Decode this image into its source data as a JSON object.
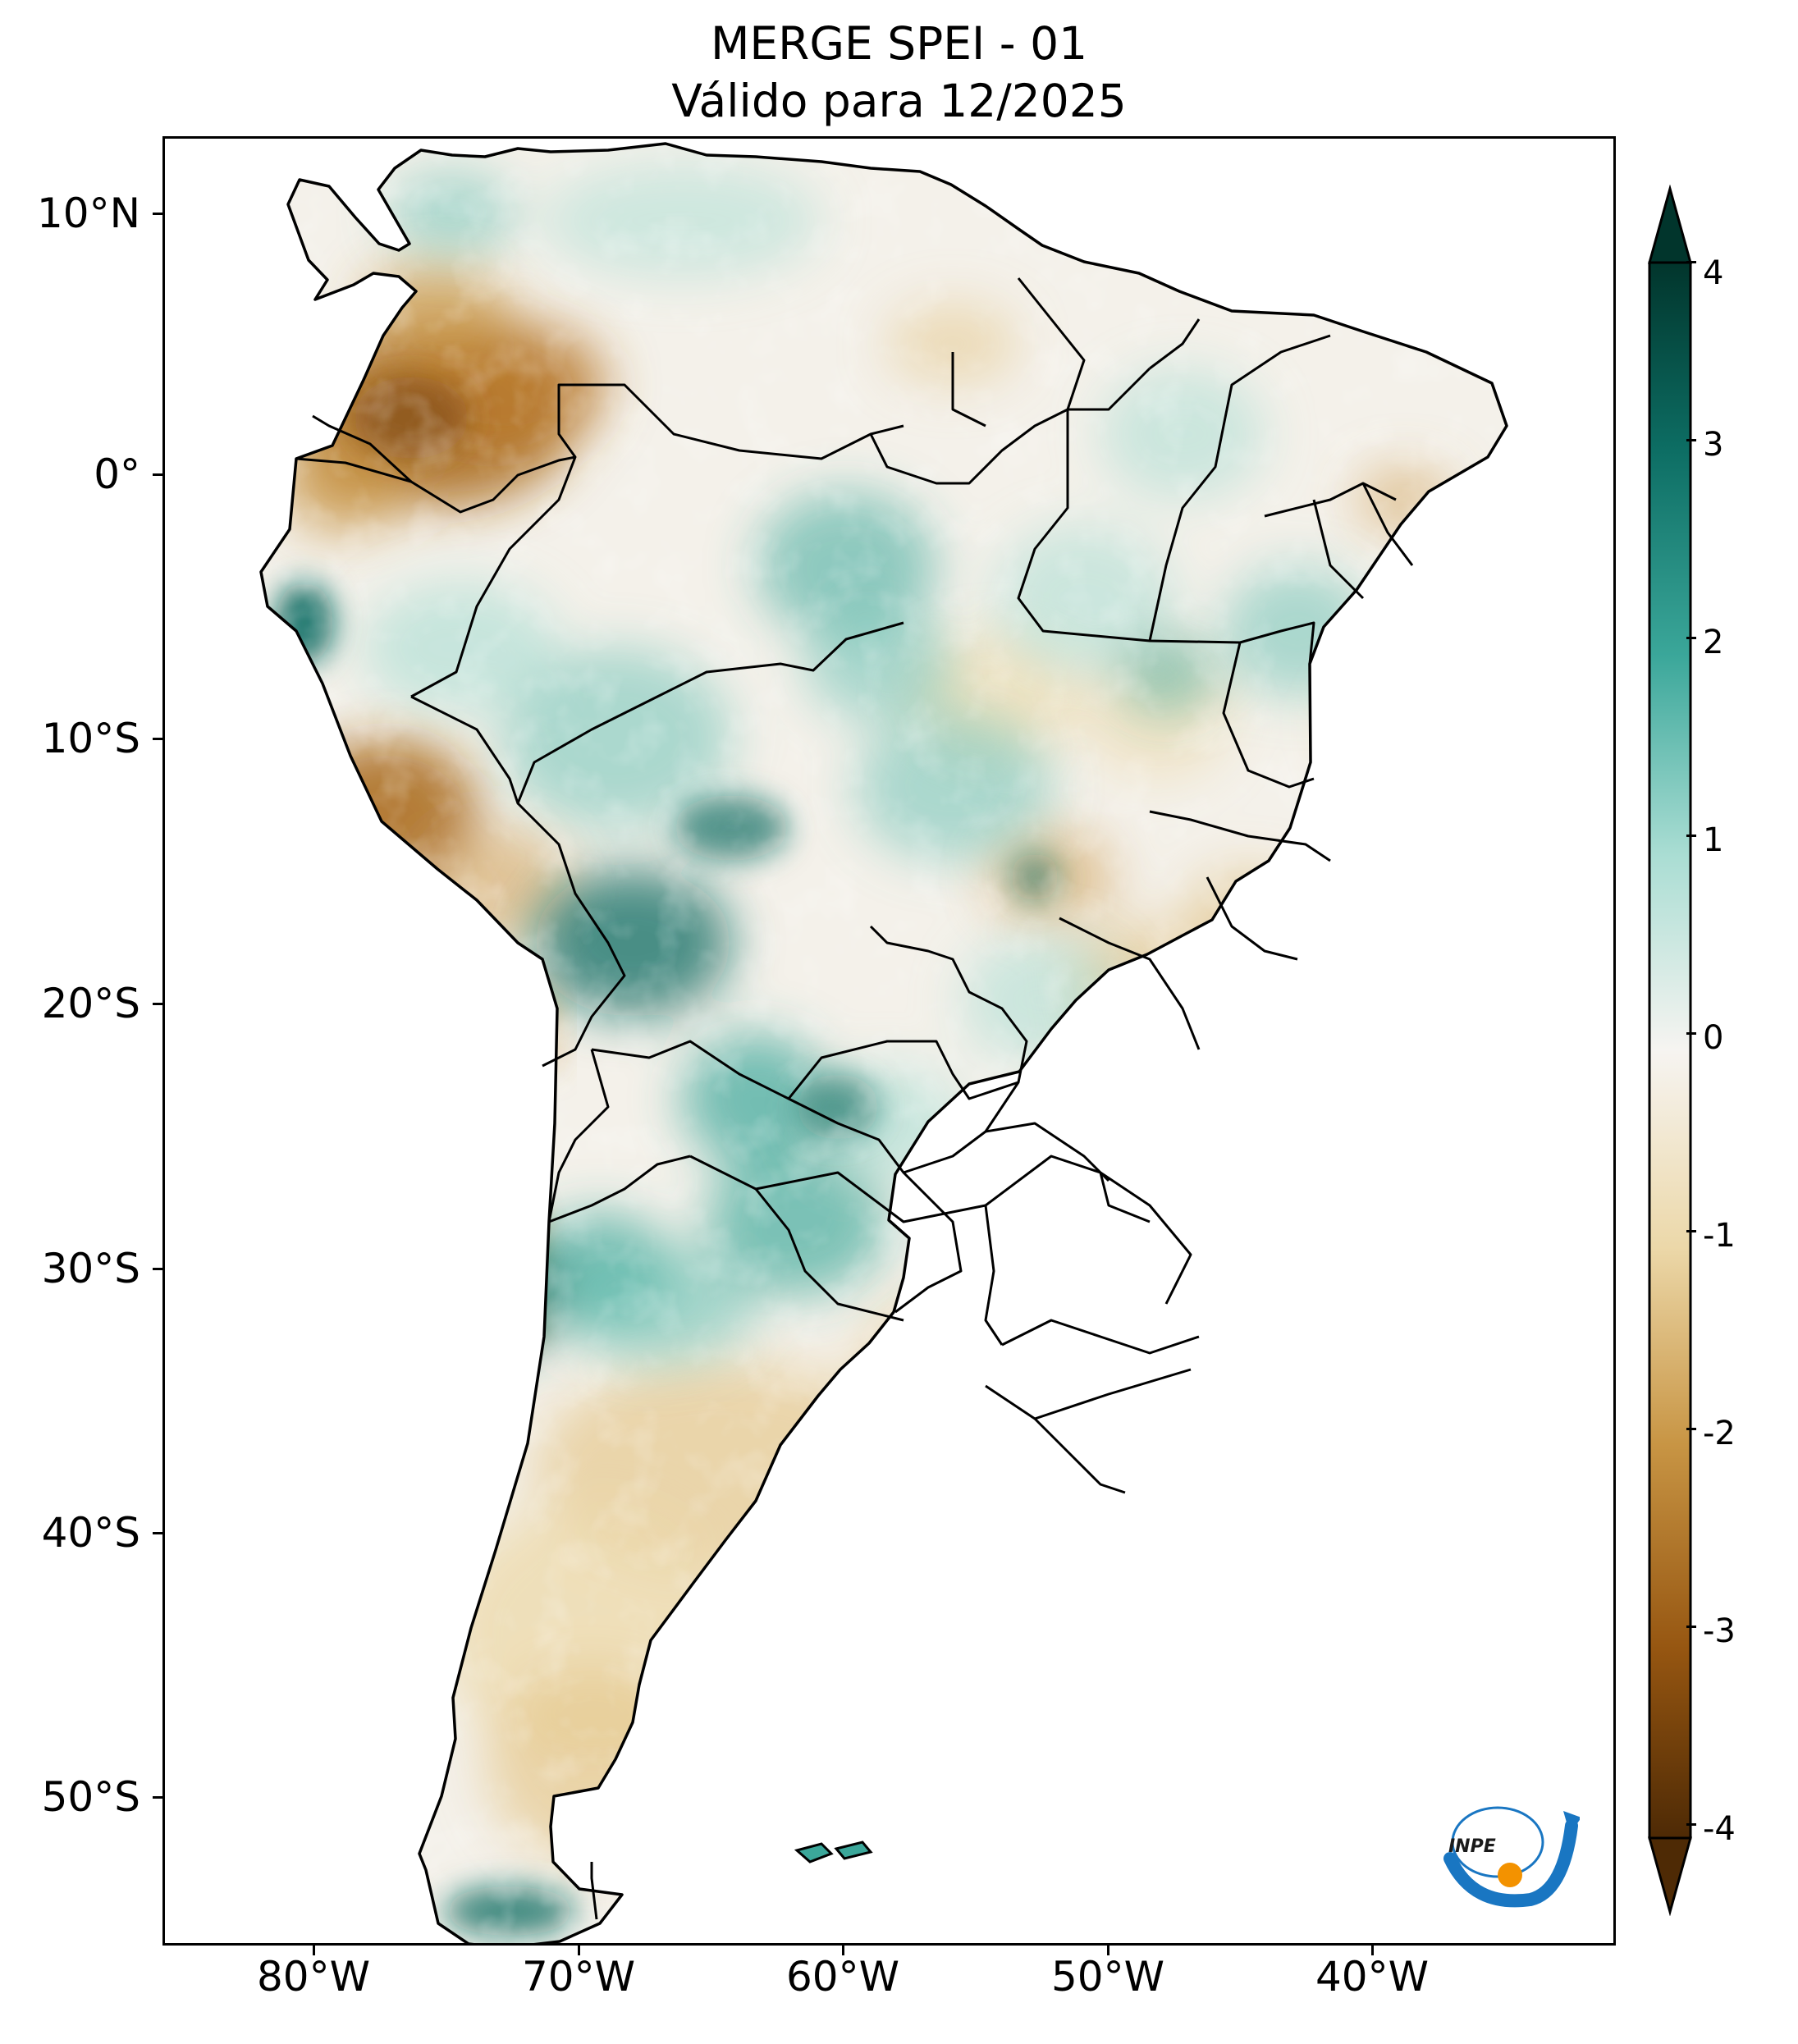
{
  "title": {
    "line1": "MERGE   SPEI - 01",
    "line2": "Válido para 12/2025"
  },
  "map": {
    "region": "South America",
    "variable": "SPEI-01",
    "lat_ticks": [
      "10°N",
      "0°",
      "10°S",
      "20°S",
      "30°S",
      "40°S",
      "50°S"
    ],
    "lon_ticks": [
      "80°W",
      "70°W",
      "60°W",
      "50°W",
      "40°W"
    ],
    "lat_values": [
      10,
      0,
      -10,
      -20,
      -30,
      -40,
      -50
    ],
    "lon_values": [
      -80,
      -70,
      -60,
      -50,
      -40
    ],
    "lat_range": [
      -56,
      12.5
    ],
    "lon_range": [
      -85,
      -30
    ]
  },
  "colorbar": {
    "ticks": [
      "4",
      "3",
      "2",
      "1",
      "0",
      "-1",
      "-2",
      "-3",
      "-4"
    ],
    "values": [
      4,
      3,
      2,
      1,
      0,
      -1,
      -2,
      -3,
      -4
    ],
    "colors": {
      "wet_max": "#01352c",
      "wet_strong": "#0d6e64",
      "wet_mid": "#3ba79a",
      "wet_light": "#a9ddd3",
      "neutral": "#f6f4f1",
      "dry_light": "#ecd8a9",
      "dry_mid": "#c89544",
      "dry_strong": "#965611",
      "dry_max": "#4e2a05"
    }
  },
  "logo": {
    "text": "INPE"
  },
  "colors": {
    "border": "#000000",
    "logo_blue": "#1976c2",
    "logo_orange": "#f39200"
  }
}
